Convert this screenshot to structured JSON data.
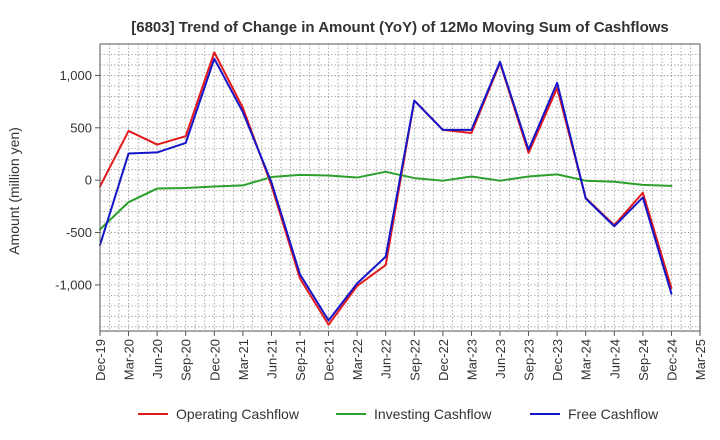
{
  "chart_data": {
    "type": "line",
    "title": "[6803]  Trend of Change in Amount (YoY) of 12Mo Moving Sum of Cashflows",
    "ylabel": "Amount (million yen)",
    "xlabel": "",
    "ylim": [
      -1440,
      1300
    ],
    "yticks": [
      -1000,
      -500,
      0,
      500,
      1000
    ],
    "ytick_labels": [
      "-1,000",
      "-500",
      "0",
      "500",
      "1,000"
    ],
    "categories": [
      "Dec-19",
      "Mar-20",
      "Jun-20",
      "Sep-20",
      "Dec-20",
      "Mar-21",
      "Jun-21",
      "Sep-21",
      "Dec-21",
      "Mar-22",
      "Jun-22",
      "Sep-22",
      "Dec-22",
      "Mar-23",
      "Jun-23",
      "Sep-23",
      "Dec-23",
      "Mar-24",
      "Jun-24",
      "Sep-24",
      "Dec-24",
      "Mar-25"
    ],
    "grid": true,
    "legend_position": "bottom",
    "series": [
      {
        "name": "Operating Cashflow",
        "color": "#e31a1c",
        "values": [
          -60,
          470,
          340,
          420,
          1220,
          690,
          -50,
          -940,
          -1380,
          -1010,
          -810,
          760,
          480,
          450,
          1120,
          260,
          880,
          -170,
          -430,
          -120,
          -1030,
          null
        ]
      },
      {
        "name": "Investing Cashflow",
        "color": "#2ca02c",
        "values": [
          -470,
          -210,
          -80,
          -75,
          -60,
          -50,
          30,
          50,
          45,
          25,
          80,
          20,
          -5,
          35,
          -5,
          35,
          55,
          -5,
          -15,
          -45,
          -55,
          null
        ]
      },
      {
        "name": "Free Cashflow",
        "color": "#1414c8",
        "values": [
          -620,
          255,
          265,
          355,
          1160,
          650,
          -20,
          -900,
          -1340,
          -985,
          -730,
          760,
          480,
          480,
          1130,
          290,
          930,
          -175,
          -440,
          -165,
          -1085,
          null
        ]
      }
    ]
  }
}
